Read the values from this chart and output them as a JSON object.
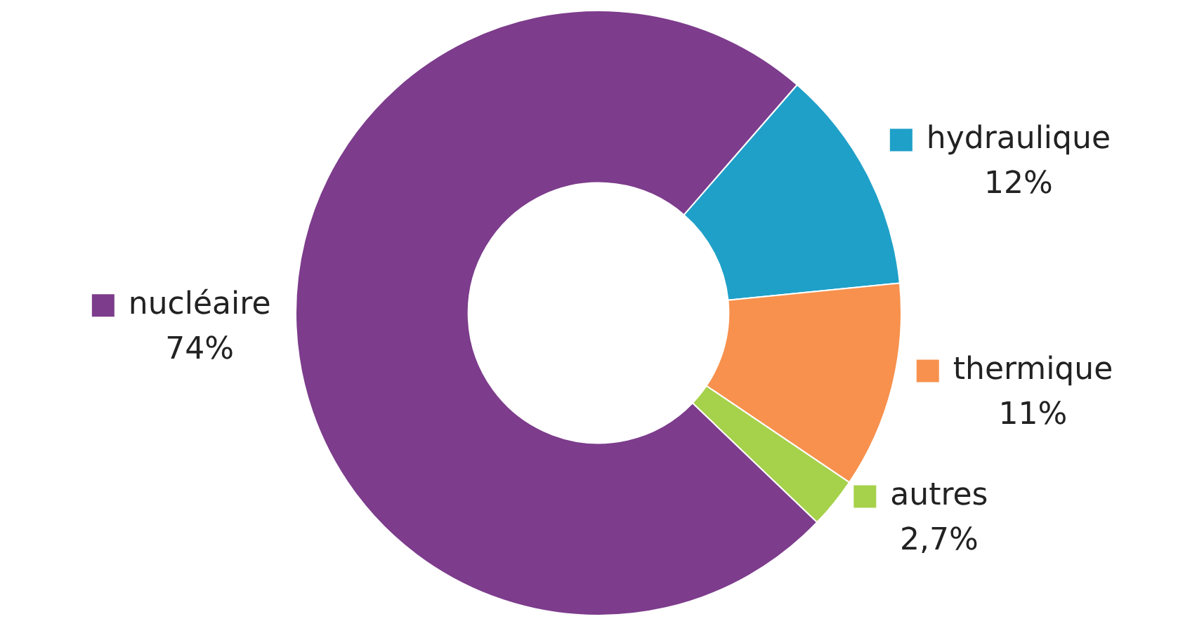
{
  "chart_data": {
    "type": "donut",
    "categories": [
      "hydraulique",
      "thermique",
      "autres",
      "nucléaire"
    ],
    "values": [
      12,
      11,
      2.7,
      74
    ],
    "colors": [
      "#1fa0c8",
      "#f7914d",
      "#a6d14b",
      "#7d3c8c"
    ],
    "value_labels": [
      "12%",
      "11%",
      "2,7%",
      "74%"
    ],
    "legend": "right"
  }
}
